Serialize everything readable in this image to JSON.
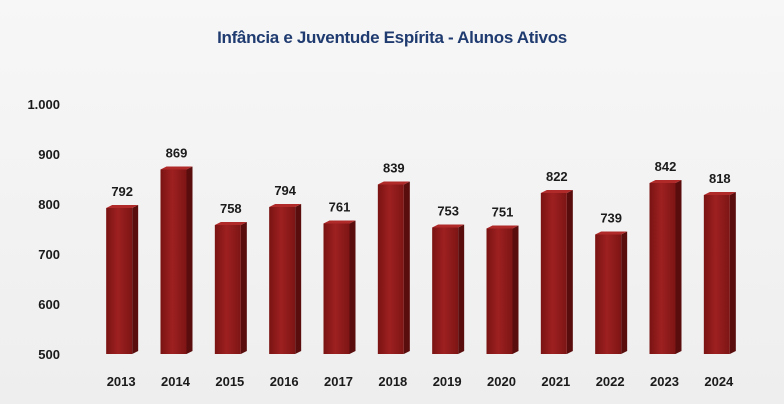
{
  "chart_data": {
    "type": "bar",
    "title": "Infância e Juventude Espírita - Alunos Ativos",
    "xlabel": "",
    "ylabel": "",
    "categories": [
      "2013",
      "2014",
      "2015",
      "2016",
      "2017",
      "2018",
      "2019",
      "2020",
      "2021",
      "2022",
      "2023",
      "2024"
    ],
    "values": [
      792,
      869,
      758,
      794,
      761,
      839,
      753,
      751,
      822,
      739,
      842,
      818
    ],
    "ylim": [
      500,
      1000
    ],
    "yticks": [
      500,
      600,
      700,
      800,
      900,
      1000
    ],
    "ytick_labels": [
      "500",
      "600",
      "700",
      "800",
      "900",
      "1.000"
    ],
    "grid": false,
    "legend": "none",
    "bar_color": "#8b1a1a"
  }
}
